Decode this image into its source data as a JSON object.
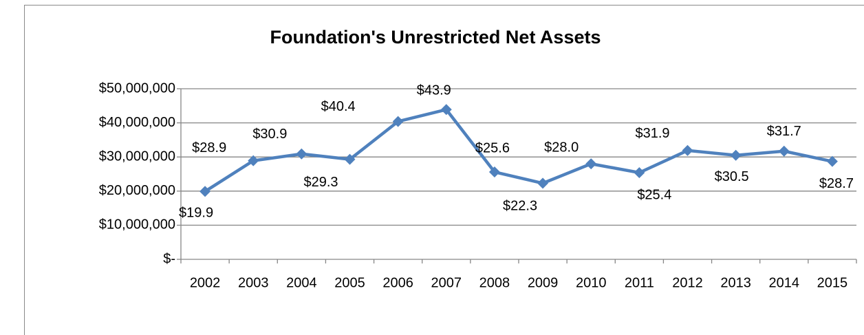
{
  "chart_data": {
    "type": "line",
    "title": "Foundation's Unrestricted Net Assets",
    "categories": [
      "2002",
      "2003",
      "2004",
      "2005",
      "2006",
      "2007",
      "2008",
      "2009",
      "2010",
      "2011",
      "2012",
      "2013",
      "2014",
      "2015"
    ],
    "series": [
      {
        "color": "#4f81bd",
        "values": [
          19900000,
          28900000,
          30900000,
          29300000,
          40400000,
          43900000,
          25600000,
          22300000,
          28000000,
          25400000,
          31900000,
          30500000,
          31700000,
          28700000
        ],
        "value_labels": [
          "$19.9",
          "$28.9",
          "$30.9",
          "$29.3",
          "$40.4",
          "$43.9",
          "$25.6",
          "$22.3",
          "$28.0",
          "$25.4",
          "$31.9",
          "$30.5",
          "$31.7",
          "$28.7"
        ]
      }
    ],
    "ylim": [
      0,
      50000000
    ],
    "yticks": [
      {
        "value": 0,
        "label": "$-"
      },
      {
        "value": 10000000,
        "label": "$10,000,000"
      },
      {
        "value": 20000000,
        "label": "$20,000,000"
      },
      {
        "value": 30000000,
        "label": "$30,000,000"
      },
      {
        "value": 40000000,
        "label": "$40,000,000"
      },
      {
        "value": 50000000,
        "label": "$50,000,000"
      }
    ],
    "grid": true
  }
}
